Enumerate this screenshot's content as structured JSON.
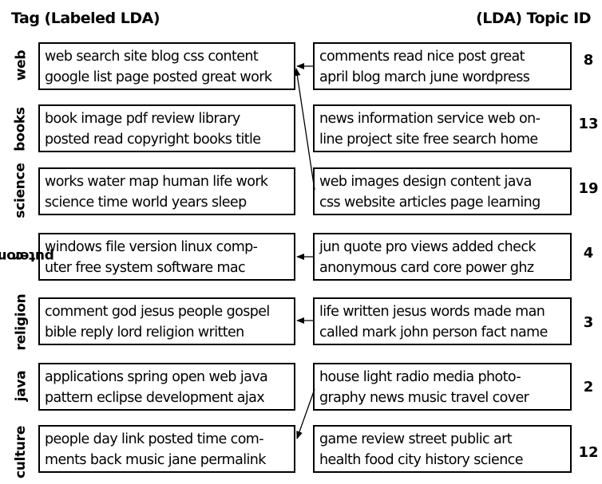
{
  "header": {
    "left": "Tag (Labeled LDA)",
    "right": "(LDA) Topic ID"
  },
  "rows": [
    {
      "tag": "web",
      "tag_lines": [
        "web"
      ],
      "tag_words": [
        "web",
        "search",
        "site",
        "blog",
        "css",
        "content",
        "google",
        "list",
        "page",
        "posted",
        "great",
        "work"
      ],
      "tag_lines_text": [
        "web search site blog css content",
        "google list page posted great work"
      ],
      "topic_id": "8",
      "topic_lines_text": [
        "comments read nice post great",
        "april blog march june wordpress"
      ]
    },
    {
      "tag": "books",
      "tag_lines": [
        "books"
      ],
      "tag_lines_text": [
        "book image pdf review library",
        "posted read copyright books title"
      ],
      "topic_id": "13",
      "topic_lines_text": [
        "news information service web on-",
        "line project site free search home"
      ]
    },
    {
      "tag": "science",
      "tag_lines": [
        "science"
      ],
      "tag_lines_text": [
        "works water map human life work",
        "science time world years sleep"
      ],
      "topic_id": "19",
      "topic_lines_text": [
        "web images design content java",
        "css website articles page learning"
      ]
    },
    {
      "tag": "computer",
      "tag_lines": [
        "com",
        "puter"
      ],
      "tag_lines_text": [
        "windows file version linux comp-",
        "uter free system software mac"
      ],
      "topic_id": "4",
      "topic_lines_text": [
        "jun quote pro views added check",
        "anonymous card core power ghz"
      ]
    },
    {
      "tag": "religion",
      "tag_lines": [
        "religion"
      ],
      "tag_lines_text": [
        "comment god jesus people gospel",
        "bible reply lord religion written"
      ],
      "topic_id": "3",
      "topic_lines_text": [
        "life written jesus words made man",
        "called mark john person fact name"
      ]
    },
    {
      "tag": "java",
      "tag_lines": [
        "java"
      ],
      "tag_lines_text": [
        "applications spring open web java",
        "pattern eclipse development ajax"
      ],
      "topic_id": "2",
      "topic_lines_text": [
        "house light radio media photo-",
        "graphy news music travel cover"
      ]
    },
    {
      "tag": "culture",
      "tag_lines": [
        "culture"
      ],
      "tag_lines_text": [
        "people day link posted time com-",
        "ments back music jane permalink"
      ],
      "topic_id": "12",
      "topic_lines_text": [
        "game review street public art",
        "health food city history science"
      ]
    }
  ],
  "links": [
    {
      "from_topic": "8",
      "to_tag": "web"
    },
    {
      "from_topic": "19",
      "to_tag": "web"
    },
    {
      "from_topic": "4",
      "to_tag": "computer"
    },
    {
      "from_topic": "3",
      "to_tag": "religion"
    },
    {
      "from_topic": "2",
      "to_tag": "culture"
    }
  ]
}
